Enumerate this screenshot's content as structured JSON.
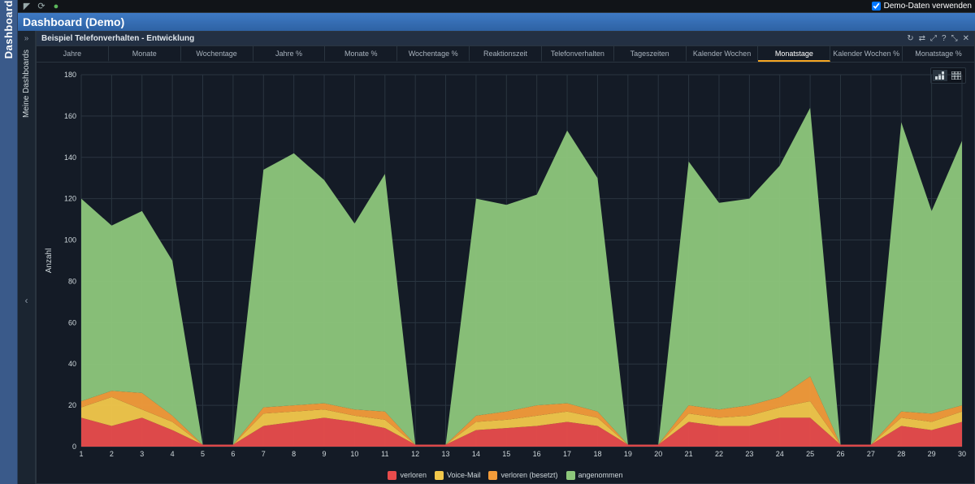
{
  "topbar": {
    "demo_checkbox_label": "Demo-Daten verwenden",
    "demo_checked": true
  },
  "sidebar_outer_label": "Dashboard",
  "title": "Dashboard (Demo)",
  "side_panel_label": "Meine Dashboards",
  "panel": {
    "title": "Beispiel Telefonverhalten - Entwicklung",
    "tools": [
      "↻",
      "⇄",
      "⤢",
      "?",
      "⤡",
      "✕"
    ]
  },
  "tabs": [
    {
      "label": "Jahre"
    },
    {
      "label": "Monate"
    },
    {
      "label": "Wochentage"
    },
    {
      "label": "Jahre %"
    },
    {
      "label": "Monate %"
    },
    {
      "label": "Wochentage %"
    },
    {
      "label": "Reaktionszeit"
    },
    {
      "label": "Telefonverhalten"
    },
    {
      "label": "Tageszeiten"
    },
    {
      "label": "Kalender Wochen"
    },
    {
      "label": "Monatstage",
      "active": true
    },
    {
      "label": "Kalender Wochen %"
    },
    {
      "label": "Monatstage %"
    }
  ],
  "chart": {
    "type": "stacked-area",
    "x_categories": [
      "1",
      "2",
      "3",
      "4",
      "5",
      "6",
      "7",
      "8",
      "9",
      "10",
      "11",
      "12",
      "13",
      "14",
      "15",
      "16",
      "17",
      "18",
      "19",
      "20",
      "21",
      "22",
      "23",
      "24",
      "25",
      "26",
      "27",
      "28",
      "29",
      "30"
    ],
    "ylabel": "Anzahl",
    "ylim": [
      0,
      180
    ],
    "ytick_step": 20,
    "background_color": "#141b26",
    "grid_color": "#2a3540",
    "axis_text_color": "#cfd8dc",
    "axis_fontsize": 9,
    "series": [
      {
        "name": "verloren",
        "color": "#e84c4c",
        "values": [
          14,
          10,
          14,
          8,
          1,
          1,
          10,
          12,
          14,
          12,
          9,
          1,
          1,
          8,
          9,
          10,
          12,
          10,
          1,
          1,
          12,
          10,
          10,
          14,
          14,
          1,
          1,
          10,
          8,
          12
        ]
      },
      {
        "name": "Voice-Mail",
        "color": "#f2c84b",
        "values": [
          5,
          14,
          4,
          4,
          0,
          0,
          6,
          5,
          4,
          3,
          4,
          0,
          0,
          4,
          4,
          5,
          5,
          4,
          0,
          0,
          4,
          4,
          5,
          5,
          8,
          0,
          0,
          4,
          4,
          5
        ]
      },
      {
        "name": "verloren (besetzt)",
        "color": "#f39c3a",
        "values": [
          3,
          3,
          8,
          3,
          0,
          0,
          3,
          3,
          3,
          3,
          4,
          0,
          0,
          3,
          4,
          5,
          4,
          3,
          0,
          0,
          4,
          4,
          5,
          5,
          12,
          0,
          0,
          3,
          4,
          3
        ]
      },
      {
        "name": "angenommen",
        "color": "#8dc77b",
        "values": [
          98,
          80,
          88,
          75,
          0,
          0,
          115,
          122,
          108,
          90,
          115,
          0,
          0,
          105,
          100,
          102,
          132,
          113,
          0,
          0,
          118,
          100,
          100,
          112,
          130,
          0,
          0,
          140,
          98,
          128
        ]
      }
    ],
    "legend_position": "bottom"
  }
}
